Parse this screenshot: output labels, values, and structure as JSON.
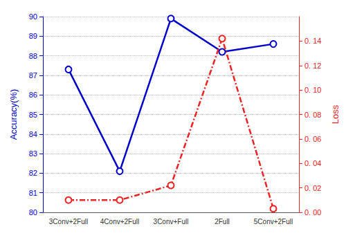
{
  "chart_data": {
    "type": "line",
    "categories": [
      "3Conv+2Full",
      "4Conv+2Full",
      "3Conv+Full",
      "2Full",
      "5Conv+2Full"
    ],
    "series": [
      {
        "color": "#0000cc",
        "values": [
          87.3,
          82.1,
          89.9,
          88.2,
          88.6
        ],
        "marker": "circle",
        "line_style": "solid"
      },
      {
        "color": "#ee2222",
        "values": [
          0.01,
          0.01,
          0.022,
          0.142,
          0.003
        ],
        "axis": "y2",
        "marker": "circle",
        "line_style": "dashdot"
      }
    ],
    "ylabel": "Accuracy(%)",
    "y2label": "Loss",
    "ylim": [
      80,
      90
    ],
    "yticks": [
      80,
      81,
      82,
      83,
      84,
      85,
      86,
      87,
      88,
      89,
      90
    ],
    "y2lim": [
      0.0,
      0.16
    ],
    "y2ticks": [
      {
        "value": 0.0,
        "label": "0. 00"
      },
      {
        "value": 0.02,
        "label": "0. 02"
      },
      {
        "value": 0.04,
        "label": "0. 04"
      },
      {
        "value": 0.06,
        "label": "0. 06"
      },
      {
        "value": 0.08,
        "label": "0. 08"
      },
      {
        "value": 0.1,
        "label": "0. 10"
      },
      {
        "value": 0.12,
        "label": "0. 12"
      },
      {
        "value": 0.14,
        "label": "0. 14"
      }
    ],
    "grid": true
  }
}
